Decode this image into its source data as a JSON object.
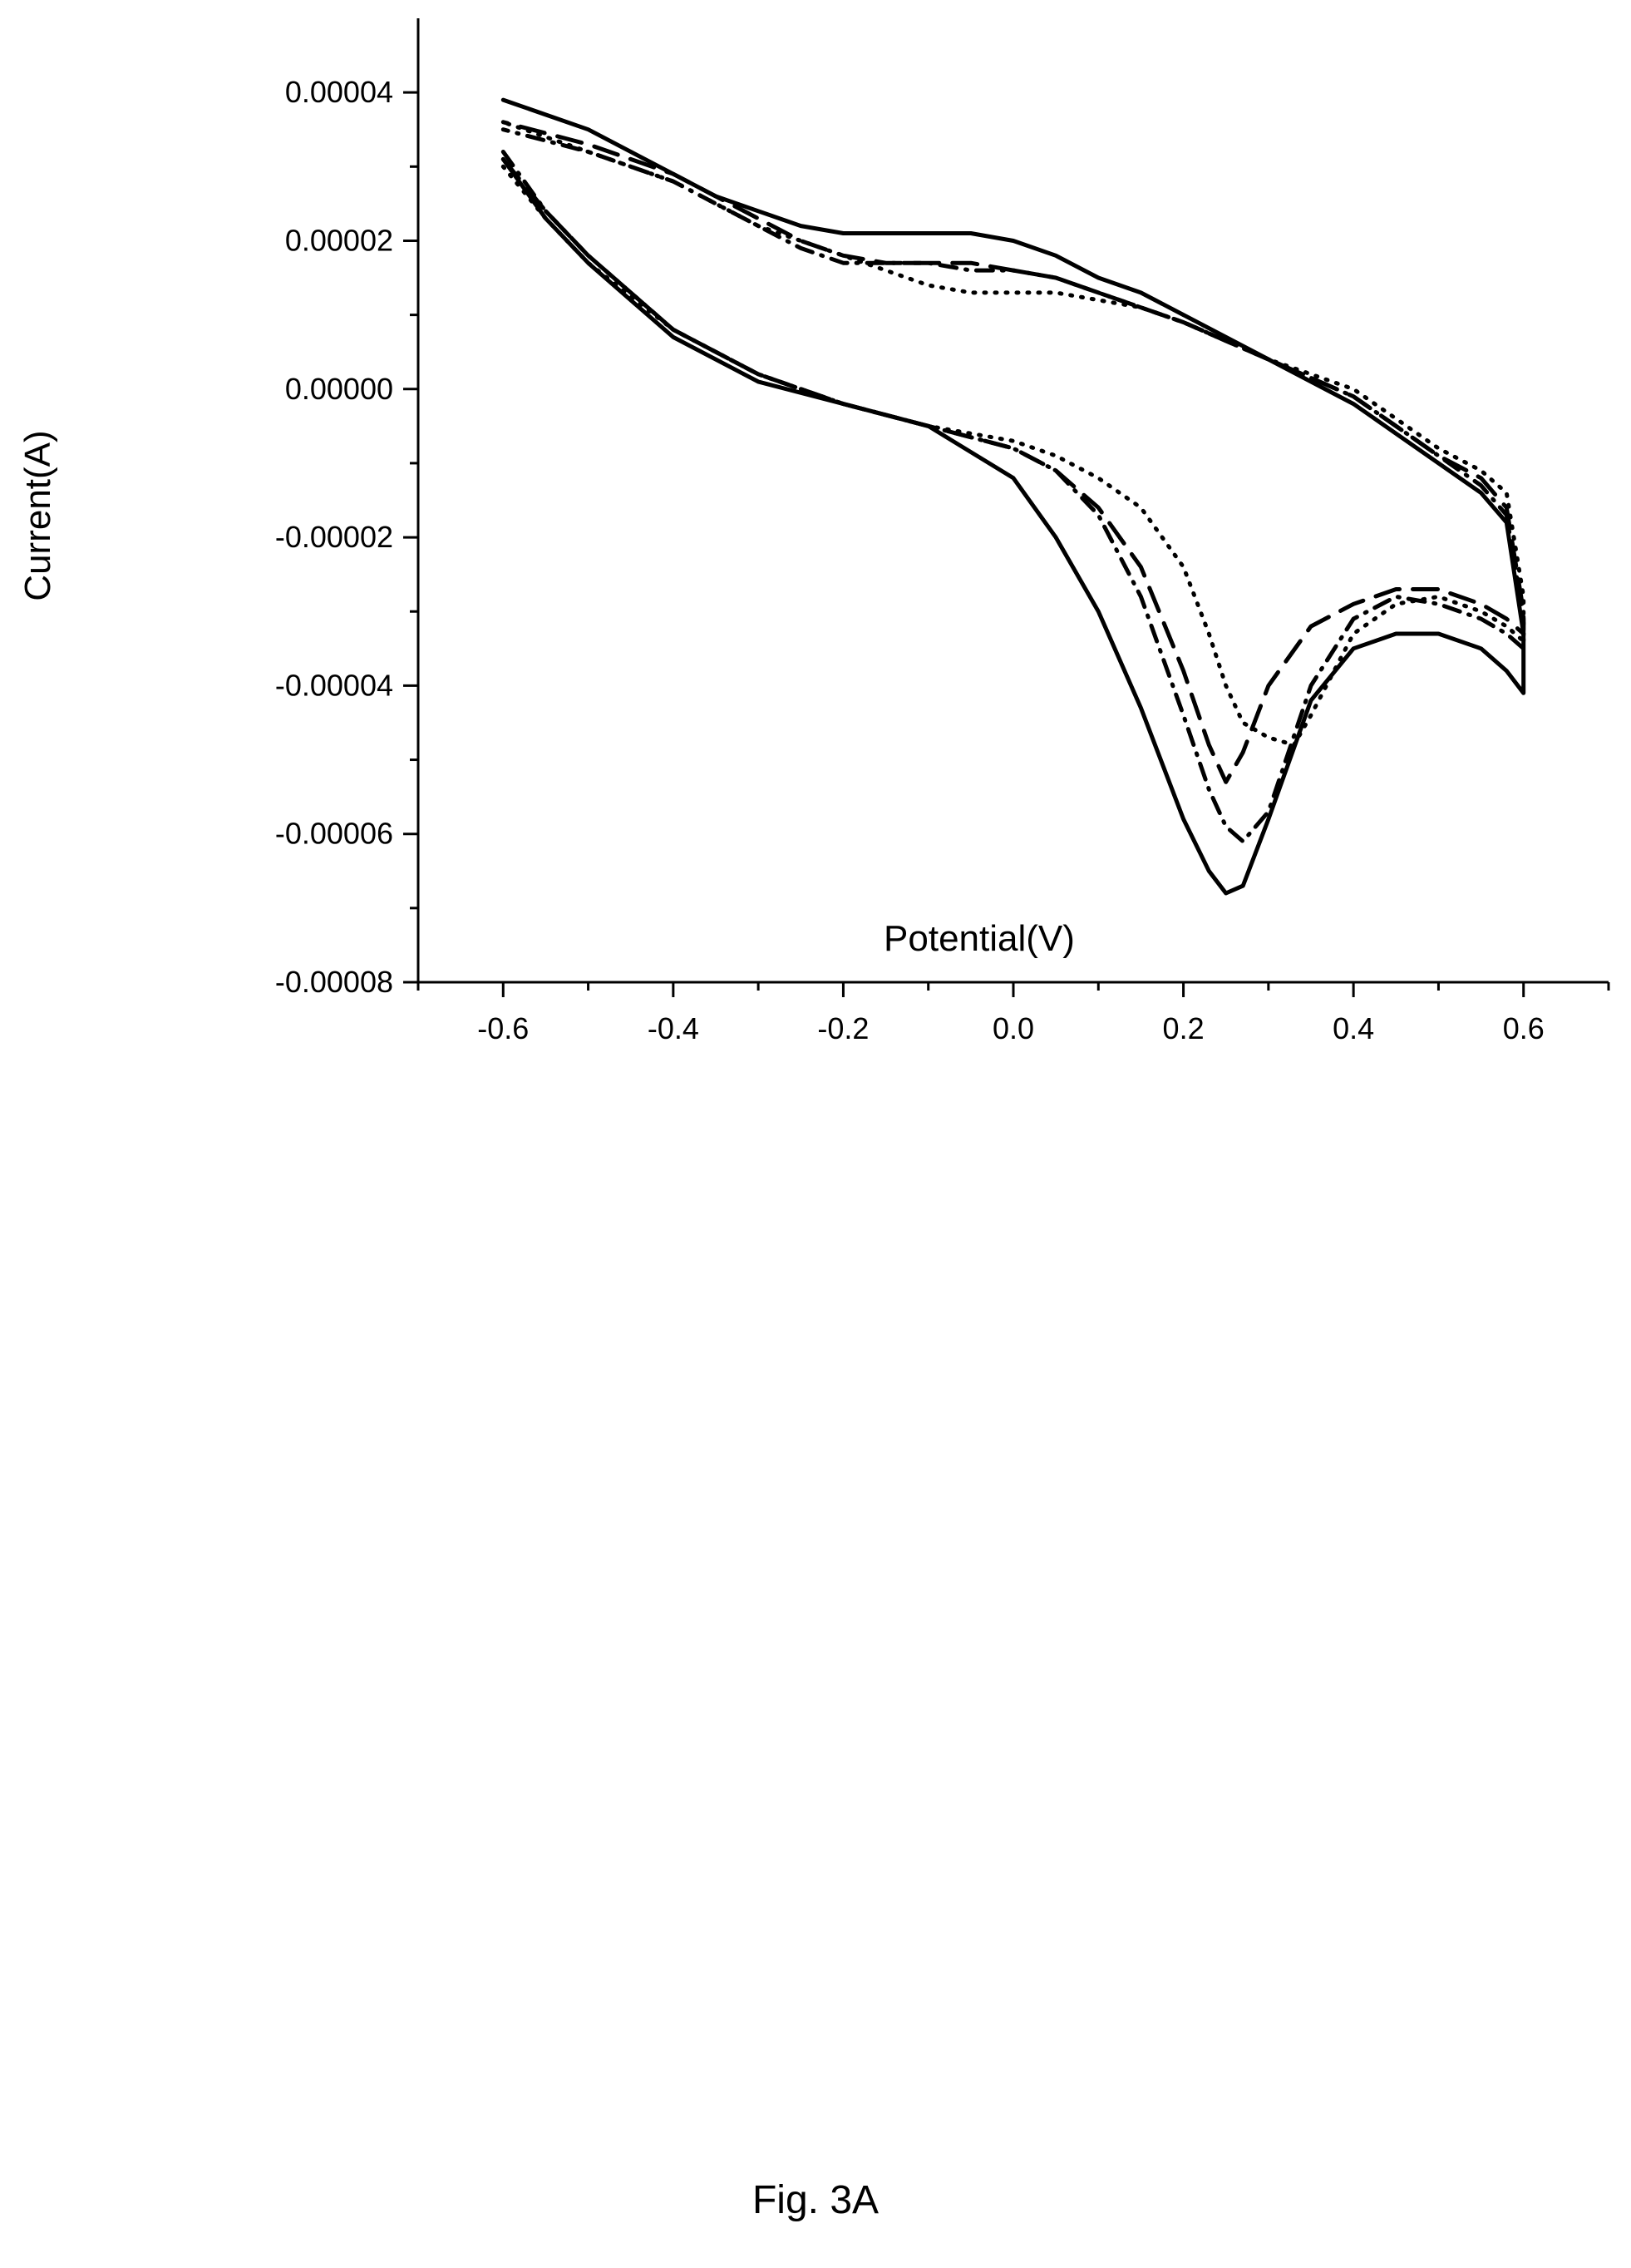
{
  "chart_data": {
    "type": "line",
    "xlabel": "Potential(V)",
    "ylabel": "Current(A)",
    "xlim": [
      -0.7,
      0.7
    ],
    "ylim": [
      -8e-05,
      5e-05
    ],
    "x_ticks": [
      -0.6,
      -0.4,
      -0.2,
      0.0,
      0.2,
      0.4,
      0.6
    ],
    "x_tick_labels": [
      "-0.6",
      "-0.4",
      "-0.2",
      "0.0",
      "0.2",
      "0.4",
      "0.6"
    ],
    "y_ticks": [
      -8e-05,
      -6e-05,
      -4e-05,
      -2e-05,
      0.0,
      2e-05,
      4e-05
    ],
    "y_tick_labels": [
      "-0.00008",
      "-0.00006",
      "-0.00004",
      "-0.00002",
      "0.00000",
      "0.00002",
      "0.00004"
    ],
    "grid": false,
    "legend": "none",
    "series": [
      {
        "style": "solid",
        "x": [
          -0.6,
          -0.55,
          -0.5,
          -0.4,
          -0.3,
          -0.2,
          -0.1,
          0.0,
          0.05,
          0.1,
          0.15,
          0.2,
          0.23,
          0.25,
          0.27,
          0.3,
          0.35,
          0.4,
          0.45,
          0.5,
          0.55,
          0.58,
          0.6,
          0.6,
          0.58,
          0.55,
          0.5,
          0.45,
          0.4,
          0.3,
          0.2,
          0.15,
          0.1,
          0.05,
          0.0,
          -0.05,
          -0.1,
          -0.15,
          -0.2,
          -0.25,
          -0.3,
          -0.35,
          -0.4,
          -0.5,
          -0.6
        ],
        "y": [
          3.1e-05,
          2.3e-05,
          1.7e-05,
          7e-06,
          1e-06,
          -2e-06,
          -5e-06,
          -1.2e-05,
          -2e-05,
          -3e-05,
          -4.3e-05,
          -5.8e-05,
          -6.5e-05,
          -6.8e-05,
          -6.7e-05,
          -5.8e-05,
          -4.2e-05,
          -3.5e-05,
          -3.3e-05,
          -3.3e-05,
          -3.5e-05,
          -3.8e-05,
          -4.1e-05,
          -3.3e-05,
          -1.8e-05,
          -1.4e-05,
          -1e-05,
          -6e-06,
          -2e-06,
          4e-06,
          1e-05,
          1.3e-05,
          1.5e-05,
          1.8e-05,
          2e-05,
          2.1e-05,
          2.1e-05,
          2.1e-05,
          2.1e-05,
          2.2e-05,
          2.4e-05,
          2.6e-05,
          2.9e-05,
          3.5e-05,
          3.9e-05
        ]
      },
      {
        "style": "dash",
        "x": [
          -0.6,
          -0.55,
          -0.5,
          -0.4,
          -0.3,
          -0.2,
          -0.1,
          0.0,
          0.05,
          0.1,
          0.15,
          0.2,
          0.23,
          0.25,
          0.27,
          0.3,
          0.35,
          0.4,
          0.45,
          0.5,
          0.55,
          0.58,
          0.6,
          0.6,
          0.58,
          0.55,
          0.5,
          0.45,
          0.4,
          0.3,
          0.2,
          0.15,
          0.1,
          0.05,
          0.0,
          -0.05,
          -0.1,
          -0.15,
          -0.2,
          -0.25,
          -0.3,
          -0.35,
          -0.4,
          -0.5,
          -0.6
        ],
        "y": [
          3.1e-05,
          2.4e-05,
          1.8e-05,
          8e-06,
          2e-06,
          -2e-06,
          -5e-06,
          -8e-06,
          -1.1e-05,
          -1.6e-05,
          -2.4e-05,
          -3.8e-05,
          -4.8e-05,
          -5.3e-05,
          -4.9e-05,
          -4e-05,
          -3.2e-05,
          -2.9e-05,
          -2.7e-05,
          -2.7e-05,
          -2.9e-05,
          -3.1e-05,
          -3.3e-05,
          -3e-05,
          -1.6e-05,
          -1.2e-05,
          -9e-06,
          -5e-06,
          -1e-06,
          4e-06,
          9e-06,
          1.1e-05,
          1.3e-05,
          1.5e-05,
          1.6e-05,
          1.7e-05,
          1.7e-05,
          1.7e-05,
          1.8e-05,
          2e-05,
          2.3e-05,
          2.6e-05,
          2.9e-05,
          3.3e-05,
          3.6e-05
        ]
      },
      {
        "style": "dot",
        "x": [
          -0.6,
          -0.55,
          -0.5,
          -0.4,
          -0.3,
          -0.2,
          -0.1,
          0.0,
          0.05,
          0.1,
          0.15,
          0.2,
          0.23,
          0.25,
          0.27,
          0.3,
          0.33,
          0.35,
          0.4,
          0.45,
          0.5,
          0.55,
          0.58,
          0.6,
          0.6,
          0.58,
          0.55,
          0.5,
          0.45,
          0.4,
          0.3,
          0.2,
          0.15,
          0.1,
          0.05,
          0.0,
          -0.05,
          -0.1,
          -0.15,
          -0.2,
          -0.25,
          -0.3,
          -0.35,
          -0.4,
          -0.5,
          -0.6
        ],
        "y": [
          3e-05,
          2.3e-05,
          1.7e-05,
          8e-06,
          2e-06,
          -2e-06,
          -5e-06,
          -7e-06,
          -9e-06,
          -1.2e-05,
          -1.6e-05,
          -2.4e-05,
          -3.3e-05,
          -4e-05,
          -4.5e-05,
          -4.7e-05,
          -4.8e-05,
          -4.4e-05,
          -3.3e-05,
          -2.9e-05,
          -2.8e-05,
          -3e-05,
          -3.2e-05,
          -3.4e-05,
          -2.8e-05,
          -1.4e-05,
          -1.1e-05,
          -8e-06,
          -4e-06,
          0.0,
          4e-06,
          9e-06,
          1.1e-05,
          1.2e-05,
          1.3e-05,
          1.3e-05,
          1.3e-05,
          1.4e-05,
          1.6e-05,
          1.8e-05,
          2e-05,
          2.2e-05,
          2.5e-05,
          2.8e-05,
          3.2e-05,
          3.6e-05
        ]
      },
      {
        "style": "dash-dot",
        "x": [
          -0.6,
          -0.55,
          -0.5,
          -0.4,
          -0.3,
          -0.2,
          -0.1,
          0.0,
          0.05,
          0.1,
          0.15,
          0.2,
          0.23,
          0.25,
          0.27,
          0.3,
          0.35,
          0.4,
          0.45,
          0.5,
          0.55,
          0.58,
          0.6,
          0.6,
          0.58,
          0.55,
          0.5,
          0.45,
          0.4,
          0.3,
          0.2,
          0.15,
          0.1,
          0.05,
          0.0,
          -0.05,
          -0.1,
          -0.15,
          -0.2,
          -0.25,
          -0.3,
          -0.35,
          -0.4,
          -0.5,
          -0.6
        ],
        "y": [
          3.2e-05,
          2.4e-05,
          1.8e-05,
          8e-06,
          2e-06,
          -2e-06,
          -5e-06,
          -8e-06,
          -1.1e-05,
          -1.7e-05,
          -2.8e-05,
          -4.4e-05,
          -5.4e-05,
          -5.9e-05,
          -6.1e-05,
          -5.7e-05,
          -4e-05,
          -3.1e-05,
          -2.8e-05,
          -2.9e-05,
          -3.1e-05,
          -3.3e-05,
          -3.5e-05,
          -3.1e-05,
          -1.7e-05,
          -1.3e-05,
          -9e-06,
          -5e-06,
          -1e-06,
          4e-06,
          9e-06,
          1.1e-05,
          1.3e-05,
          1.5e-05,
          1.6e-05,
          1.6e-05,
          1.7e-05,
          1.7e-05,
          1.7e-05,
          1.9e-05,
          2.2e-05,
          2.5e-05,
          2.8e-05,
          3.2e-05,
          3.5e-05
        ]
      }
    ]
  },
  "figure": {
    "caption": "Fig. 3A"
  }
}
